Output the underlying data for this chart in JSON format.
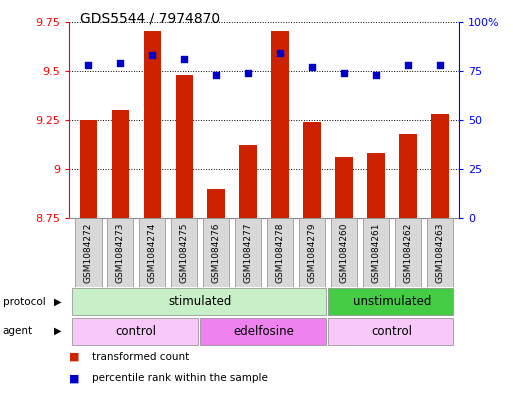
{
  "title": "GDS5544 / 7974870",
  "samples": [
    "GSM1084272",
    "GSM1084273",
    "GSM1084274",
    "GSM1084275",
    "GSM1084276",
    "GSM1084277",
    "GSM1084278",
    "GSM1084279",
    "GSM1084260",
    "GSM1084261",
    "GSM1084262",
    "GSM1084263"
  ],
  "red_values": [
    9.25,
    9.3,
    9.7,
    9.48,
    8.9,
    9.12,
    9.7,
    9.24,
    9.06,
    9.08,
    9.18,
    9.28
  ],
  "blue_values": [
    78,
    79,
    83,
    81,
    73,
    74,
    84,
    77,
    74,
    73,
    78,
    78
  ],
  "ylim_left": [
    8.75,
    9.75
  ],
  "ylim_right": [
    0,
    100
  ],
  "yticks_left": [
    8.75,
    9.0,
    9.25,
    9.5,
    9.75
  ],
  "yticks_right": [
    0,
    25,
    50,
    75,
    100
  ],
  "ytick_labels_left": [
    "8.75",
    "9",
    "9.25",
    "9.5",
    "9.75"
  ],
  "ytick_labels_right": [
    "0",
    "25",
    "50",
    "75",
    "100%"
  ],
  "protocol_labels": [
    {
      "text": "stimulated",
      "start": 0,
      "end": 8,
      "color": "#c8f0c8"
    },
    {
      "text": "unstimulated",
      "start": 8,
      "end": 12,
      "color": "#44cc44"
    }
  ],
  "agent_labels": [
    {
      "text": "control",
      "start": 0,
      "end": 4,
      "color": "#f8c8f8"
    },
    {
      "text": "edelfosine",
      "start": 4,
      "end": 8,
      "color": "#ee82ee"
    },
    {
      "text": "control",
      "start": 8,
      "end": 12,
      "color": "#f8c8f8"
    }
  ],
  "legend_items": [
    {
      "color": "#cc2200",
      "label": "transformed count"
    },
    {
      "color": "#0000cc",
      "label": "percentile rank within the sample"
    }
  ],
  "bar_color": "#cc2200",
  "dot_color": "#0000cc",
  "bar_bottom": 8.75,
  "sample_box_color": "#d8d8d8",
  "sample_box_edge": "#888888"
}
